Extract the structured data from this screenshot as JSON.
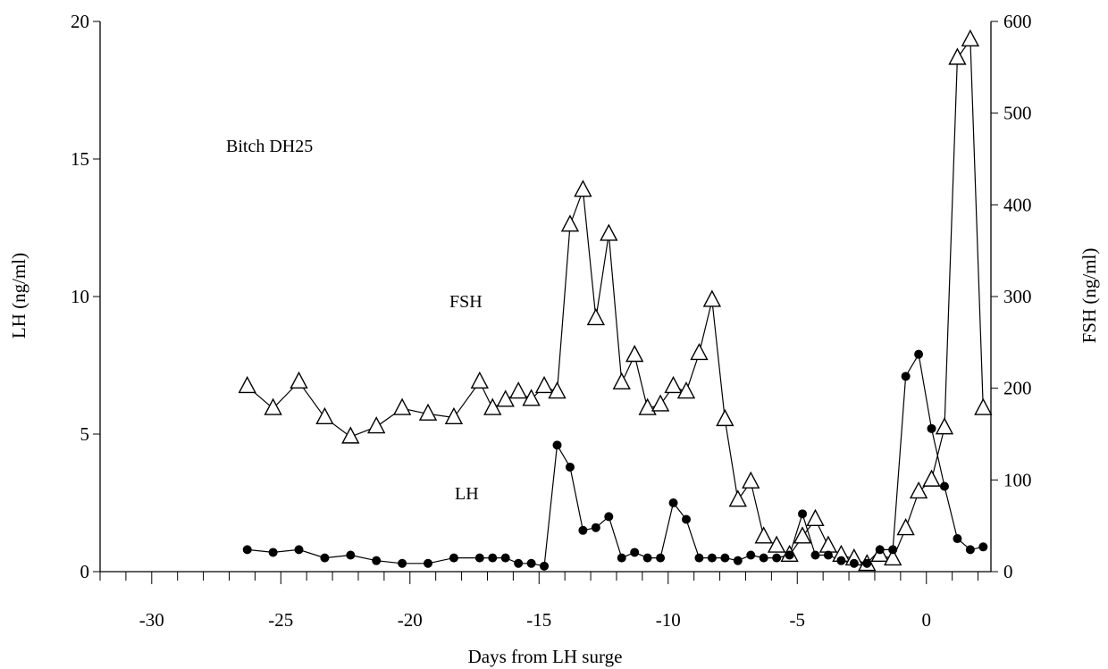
{
  "chart_data": {
    "type": "line",
    "title": "",
    "annotations": {
      "subject": "Bitch DH25",
      "fsh_label": "FSH",
      "lh_label": "LH"
    },
    "xlabel": "Days from LH surge",
    "ylabel_left": "LH (ng/ml)",
    "ylabel_right": "FSH (ng/ml)",
    "xlim": [
      -32,
      2.5
    ],
    "ylim_left": [
      0,
      20
    ],
    "ylim_right": [
      0,
      600
    ],
    "x_ticks": [
      "-30",
      "-25",
      "-20",
      "-15",
      "-10",
      "-5",
      "0"
    ],
    "y_left_ticks": [
      "0",
      "5",
      "10",
      "15",
      "20"
    ],
    "y_right_ticks": [
      "0",
      "100",
      "200",
      "300",
      "400",
      "500",
      "600"
    ],
    "grid": false,
    "legend": "none",
    "series": [
      {
        "name": "FSH",
        "axis": "right",
        "marker": "open-triangle",
        "points": [
          [
            -26.3,
            202
          ],
          [
            -25.3,
            178
          ],
          [
            -24.3,
            207
          ],
          [
            -23.3,
            168
          ],
          [
            -22.3,
            147
          ],
          [
            -21.3,
            158
          ],
          [
            -20.3,
            178
          ],
          [
            -19.3,
            172
          ],
          [
            -18.3,
            168
          ],
          [
            -17.3,
            207
          ],
          [
            -16.8,
            178
          ],
          [
            -16.3,
            187
          ],
          [
            -15.8,
            196
          ],
          [
            -15.3,
            188
          ],
          [
            -14.8,
            202
          ],
          [
            -14.3,
            196
          ],
          [
            -13.8,
            378
          ],
          [
            -13.3,
            416
          ],
          [
            -12.8,
            276
          ],
          [
            -12.3,
            368
          ],
          [
            -11.8,
            206
          ],
          [
            -11.3,
            236
          ],
          [
            -10.8,
            178
          ],
          [
            -10.3,
            182
          ],
          [
            -9.8,
            202
          ],
          [
            -9.3,
            196
          ],
          [
            -8.8,
            238
          ],
          [
            -8.3,
            296
          ],
          [
            -7.8,
            166
          ],
          [
            -7.3,
            78
          ],
          [
            -6.8,
            98
          ],
          [
            -6.3,
            38
          ],
          [
            -5.8,
            28
          ],
          [
            -5.3,
            18
          ],
          [
            -4.8,
            38
          ],
          [
            -4.3,
            57
          ],
          [
            -3.8,
            28
          ],
          [
            -3.3,
            18
          ],
          [
            -2.8,
            14
          ],
          [
            -2.3,
            8
          ],
          [
            -1.8,
            18
          ],
          [
            -1.3,
            14
          ],
          [
            -0.8,
            47
          ],
          [
            -0.3,
            87
          ],
          [
            0.2,
            100
          ],
          [
            0.7,
            157
          ],
          [
            1.2,
            560
          ],
          [
            1.7,
            580
          ],
          [
            2.2,
            178
          ]
        ]
      },
      {
        "name": "LH",
        "axis": "left",
        "marker": "filled-circle",
        "points": [
          [
            -26.3,
            0.8
          ],
          [
            -25.3,
            0.7
          ],
          [
            -24.3,
            0.8
          ],
          [
            -23.3,
            0.5
          ],
          [
            -22.3,
            0.6
          ],
          [
            -21.3,
            0.4
          ],
          [
            -20.3,
            0.3
          ],
          [
            -19.3,
            0.3
          ],
          [
            -18.3,
            0.5
          ],
          [
            -17.3,
            0.5
          ],
          [
            -16.8,
            0.5
          ],
          [
            -16.3,
            0.5
          ],
          [
            -15.8,
            0.3
          ],
          [
            -15.3,
            0.3
          ],
          [
            -14.8,
            0.2
          ],
          [
            -14.3,
            4.6
          ],
          [
            -13.8,
            3.8
          ],
          [
            -13.3,
            1.5
          ],
          [
            -12.8,
            1.6
          ],
          [
            -12.3,
            2.0
          ],
          [
            -11.8,
            0.5
          ],
          [
            -11.3,
            0.7
          ],
          [
            -10.8,
            0.5
          ],
          [
            -10.3,
            0.5
          ],
          [
            -9.8,
            2.5
          ],
          [
            -9.3,
            1.9
          ],
          [
            -8.8,
            0.5
          ],
          [
            -8.3,
            0.5
          ],
          [
            -7.8,
            0.5
          ],
          [
            -7.3,
            0.4
          ],
          [
            -6.8,
            0.6
          ],
          [
            -6.3,
            0.5
          ],
          [
            -5.8,
            0.5
          ],
          [
            -5.3,
            0.6
          ],
          [
            -4.8,
            2.1
          ],
          [
            -4.3,
            0.6
          ],
          [
            -3.8,
            0.6
          ],
          [
            -3.3,
            0.4
          ],
          [
            -2.8,
            0.3
          ],
          [
            -2.3,
            0.3
          ],
          [
            -1.8,
            0.8
          ],
          [
            -1.3,
            0.8
          ],
          [
            -0.8,
            7.1
          ],
          [
            -0.3,
            7.9
          ],
          [
            0.2,
            5.2
          ],
          [
            0.7,
            3.1
          ],
          [
            1.2,
            1.2
          ],
          [
            1.7,
            0.8
          ],
          [
            2.2,
            0.9
          ]
        ]
      }
    ]
  }
}
